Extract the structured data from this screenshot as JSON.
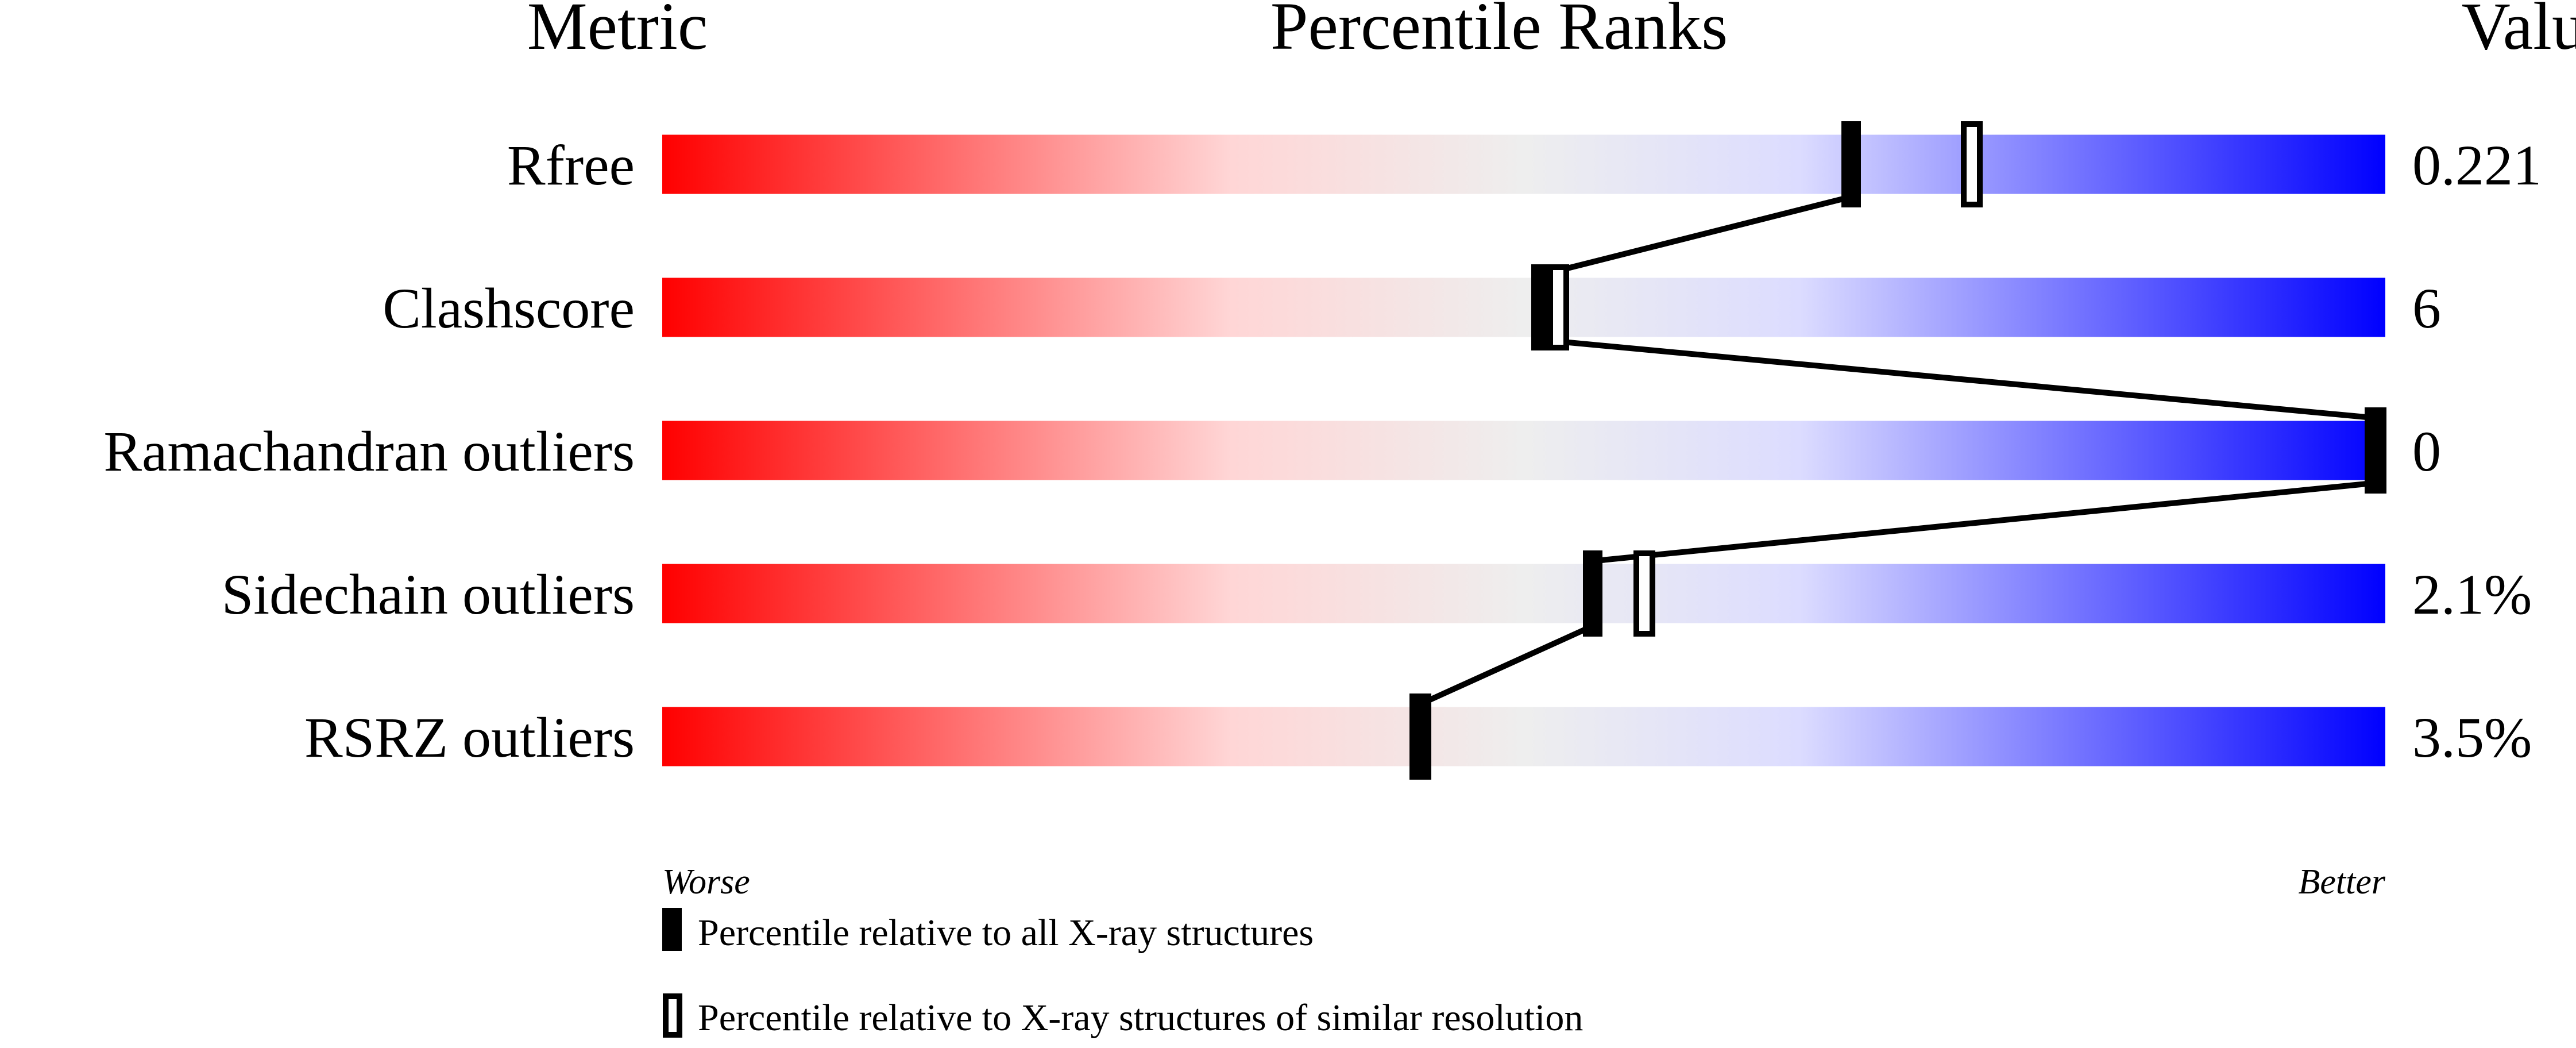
{
  "chart_data": {
    "type": "percentile-slider",
    "headers": {
      "metric": "Metric",
      "title": "Percentile Ranks",
      "value": "Value"
    },
    "axis": {
      "left": "Worse",
      "right": "Better",
      "range": [
        0,
        100
      ]
    },
    "gradient_colors": [
      "#ff0000",
      "#ffdddd",
      "#eeeeee",
      "#ddddff",
      "#0000ff"
    ],
    "metrics": [
      {
        "name": "Rfree",
        "value": "0.221",
        "percentile_all": 69,
        "percentile_similar": 76
      },
      {
        "name": "Clashscore",
        "value": "6",
        "percentile_all": 51,
        "percentile_similar": 52
      },
      {
        "name": "Ramachandran outliers",
        "value": "0",
        "percentile_all": 100,
        "percentile_similar": 100
      },
      {
        "name": "Sidechain outliers",
        "value": "2.1%",
        "percentile_all": 54,
        "percentile_similar": 57
      },
      {
        "name": "RSRZ outliers",
        "value": "3.5%",
        "percentile_all": 44,
        "percentile_similar": 44
      }
    ],
    "legend": [
      {
        "marker": "filled",
        "label": "Percentile relative to all X-ray structures"
      },
      {
        "marker": "hollow",
        "label": "Percentile relative to X-ray structures of similar resolution"
      }
    ]
  }
}
